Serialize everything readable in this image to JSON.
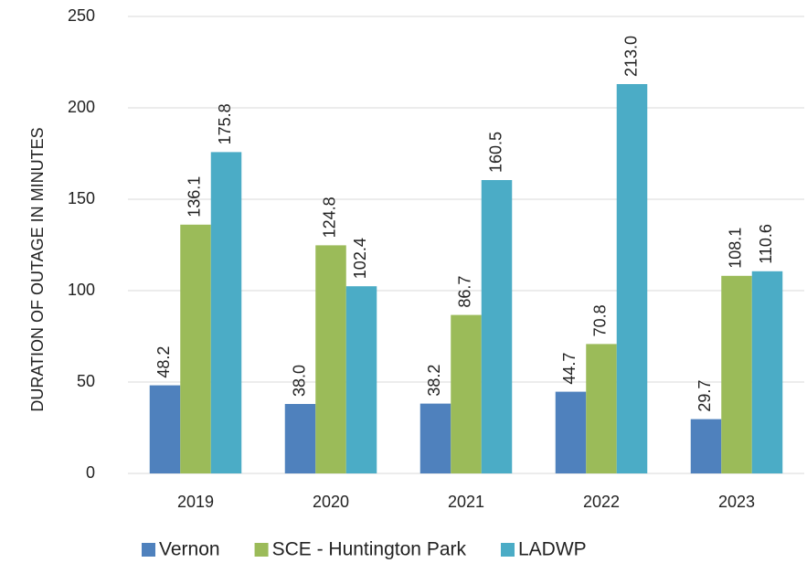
{
  "chart_data": {
    "type": "bar",
    "y_label": "DURATION OF OUTAGE IN MINUTES",
    "categories": [
      "2019",
      "2020",
      "2021",
      "2022",
      "2023"
    ],
    "series": [
      {
        "name": "Vernon",
        "color": "#4f81bd",
        "values": [
          48.2,
          38,
          38.2,
          44.7,
          29.7
        ],
        "value_labels": [
          "48.2",
          "38.0",
          "38.2",
          "44.7",
          "29.7"
        ]
      },
      {
        "name": "SCE - Huntington Park",
        "color": "#9bbb59",
        "values": [
          136.1,
          124.8,
          86.7,
          70.8,
          108.1
        ],
        "value_labels": [
          "136.1",
          "124.8",
          "86.7",
          "70.8",
          "108.1"
        ]
      },
      {
        "name": "LADWP",
        "color": "#4bacc6",
        "values": [
          175.8,
          102.4,
          160.5,
          213,
          110.6
        ],
        "value_labels": [
          "175.8",
          "102.4",
          "160.5",
          "213.0",
          "110.6"
        ]
      }
    ],
    "ylim": [
      0,
      250
    ],
    "yticks": [
      0,
      50,
      100,
      150,
      200,
      250
    ],
    "grid": true,
    "legend": "bottom"
  }
}
